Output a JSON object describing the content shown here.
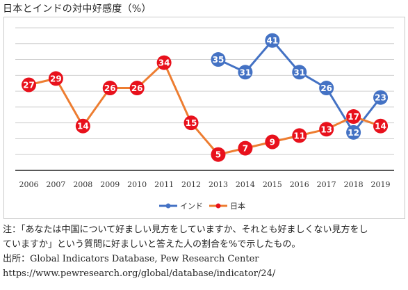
{
  "chart_data": {
    "type": "line",
    "title": "日本とインドの対中好感度（%）",
    "categories": [
      "2006",
      "2007",
      "2008",
      "2009",
      "2010",
      "2011",
      "2012",
      "2013",
      "2014",
      "2015",
      "2016",
      "2017",
      "2018",
      "2019"
    ],
    "series": [
      {
        "name": "インド",
        "color": "#4472c4",
        "values": [
          null,
          null,
          null,
          null,
          null,
          null,
          null,
          35,
          31,
          41,
          31,
          26,
          12,
          23
        ]
      },
      {
        "name": "日本",
        "color": "#ed7d31",
        "marker_color": "#e8111c",
        "values": [
          27,
          29,
          14,
          26,
          26,
          34,
          15,
          5,
          7,
          9,
          11,
          13,
          17,
          14
        ]
      }
    ],
    "ylim": [
      0,
      45
    ],
    "grid": true,
    "legend_position": "bottom-center"
  },
  "notes": {
    "line1": "注：「あなたは中国について好ましい見方をしていますか、それとも好ましくない見方をし",
    "line2": "ていますか」という質問に好ましいと答えた人の割合を%で示したもの。",
    "source": "出所：Global Indicators Database, Pew Research Center",
    "url": "https://www.pewresearch.org/global/database/indicator/24/"
  }
}
